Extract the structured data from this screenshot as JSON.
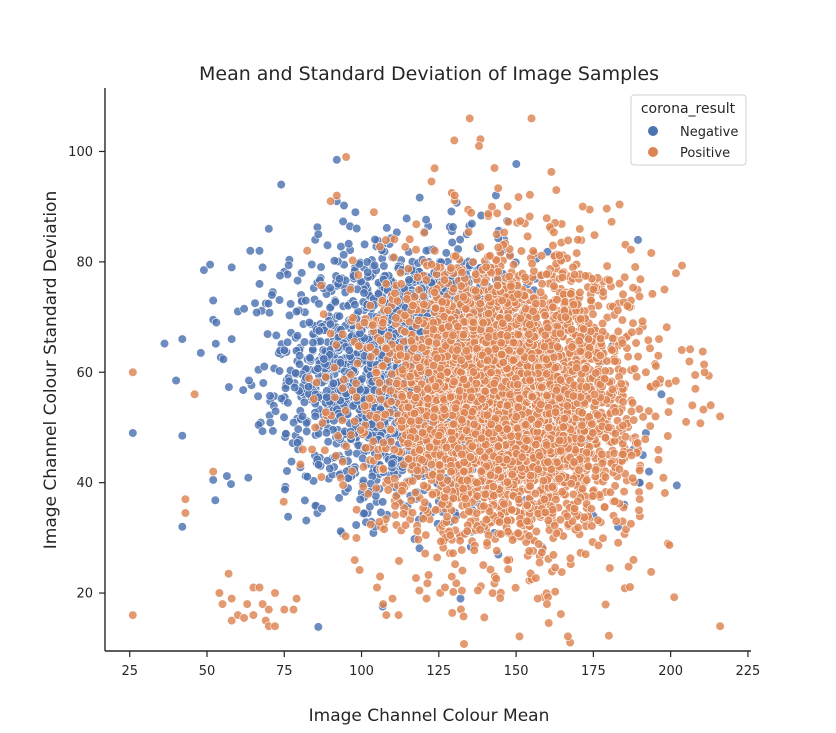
{
  "chart_data": {
    "type": "scatter",
    "title": "Mean and Standard Deviation of Image Samples",
    "xlabel": "Image Channel Colour Mean",
    "ylabel": "Image Channel Colour Standard Deviation",
    "xlim": [
      17,
      226
    ],
    "ylim": [
      9.5,
      111.5
    ],
    "x_ticks": [
      25,
      50,
      75,
      100,
      125,
      150,
      175,
      200,
      225
    ],
    "y_ticks": [
      20,
      40,
      60,
      80,
      100
    ],
    "grid": false,
    "legend": {
      "title": "corona_result",
      "placement": "top-right",
      "entries": [
        "Negative",
        "Positive"
      ]
    },
    "series": [
      {
        "name": "Negative",
        "color": "#4c72b0",
        "cluster": {
          "center": [
            117,
            60
          ],
          "spread": [
            20,
            11
          ],
          "count": 2600
        },
        "points": [
          [
            26,
            49
          ],
          [
            40,
            58.5
          ],
          [
            42,
            48.5
          ],
          [
            42,
            66
          ],
          [
            42,
            32
          ],
          [
            48,
            63.5
          ],
          [
            49,
            78.5
          ],
          [
            51,
            79.5
          ],
          [
            52,
            73
          ],
          [
            52,
            69.5
          ],
          [
            53,
            69
          ],
          [
            52,
            40.5
          ],
          [
            58,
            79
          ],
          [
            58,
            66
          ],
          [
            60,
            71
          ],
          [
            62,
            71.5
          ],
          [
            64,
            82
          ],
          [
            67,
            82
          ],
          [
            67,
            76
          ],
          [
            68,
            79
          ],
          [
            70,
            86
          ],
          [
            71,
            74
          ],
          [
            74,
            94
          ],
          [
            75,
            64
          ],
          [
            79,
            71
          ],
          [
            80,
            63
          ],
          [
            82,
            59
          ],
          [
            85,
            84
          ],
          [
            86,
            85
          ],
          [
            89,
            83
          ],
          [
            92,
            91
          ],
          [
            92,
            98.5
          ],
          [
            96,
            64
          ],
          [
            98,
            89
          ],
          [
            132,
            19
          ],
          [
            175,
            34
          ],
          [
            183,
            32
          ],
          [
            185,
            36
          ],
          [
            188,
            46
          ],
          [
            190,
            40
          ],
          [
            190,
            40
          ],
          [
            191,
            45
          ],
          [
            192,
            49
          ],
          [
            193,
            42
          ],
          [
            202,
            39.5
          ],
          [
            197,
            56
          ]
        ]
      },
      {
        "name": "Positive",
        "color": "#dd8452",
        "cluster": {
          "center": [
            147,
            55
          ],
          "spread": [
            20,
            12.5
          ],
          "count": 4200
        },
        "points": [
          [
            26,
            60
          ],
          [
            26,
            16
          ],
          [
            43,
            37
          ],
          [
            43,
            34.5
          ],
          [
            46,
            56
          ],
          [
            52,
            42
          ],
          [
            54,
            20
          ],
          [
            55,
            18
          ],
          [
            57,
            23.5
          ],
          [
            58,
            15
          ],
          [
            58,
            19
          ],
          [
            60,
            16
          ],
          [
            62,
            15.5
          ],
          [
            63,
            18
          ],
          [
            65,
            21
          ],
          [
            65,
            16
          ],
          [
            67,
            21
          ],
          [
            68,
            18
          ],
          [
            69,
            15
          ],
          [
            70,
            17
          ],
          [
            70,
            14
          ],
          [
            72,
            14
          ],
          [
            72,
            20
          ],
          [
            75,
            17
          ],
          [
            78,
            17
          ],
          [
            79,
            19
          ],
          [
            81,
            46
          ],
          [
            84,
            46
          ],
          [
            85,
            50
          ],
          [
            87,
            41
          ],
          [
            90,
            91
          ],
          [
            92,
            92
          ],
          [
            90,
            67
          ],
          [
            95,
            99
          ],
          [
            104,
            89
          ],
          [
            105,
            21
          ],
          [
            106,
            23
          ],
          [
            107,
            18
          ],
          [
            108,
            16
          ],
          [
            110,
            19
          ],
          [
            112,
            16
          ],
          [
            121,
            19
          ],
          [
            127,
            21
          ],
          [
            130,
            102
          ],
          [
            135,
            106
          ],
          [
            138,
            101
          ],
          [
            143,
            97
          ],
          [
            155,
            106
          ],
          [
            157,
            19
          ],
          [
            160,
            18
          ],
          [
            163,
            93
          ],
          [
            170,
            84
          ],
          [
            175,
            75
          ],
          [
            180,
            50
          ],
          [
            182,
            62
          ],
          [
            186,
            72
          ],
          [
            188,
            26
          ],
          [
            190,
            37
          ],
          [
            192,
            60
          ],
          [
            196,
            63
          ],
          [
            198,
            75
          ],
          [
            205,
            51
          ],
          [
            207,
            54
          ],
          [
            208,
            57
          ],
          [
            211,
            60
          ],
          [
            216,
            52
          ],
          [
            216,
            14
          ]
        ]
      }
    ]
  }
}
